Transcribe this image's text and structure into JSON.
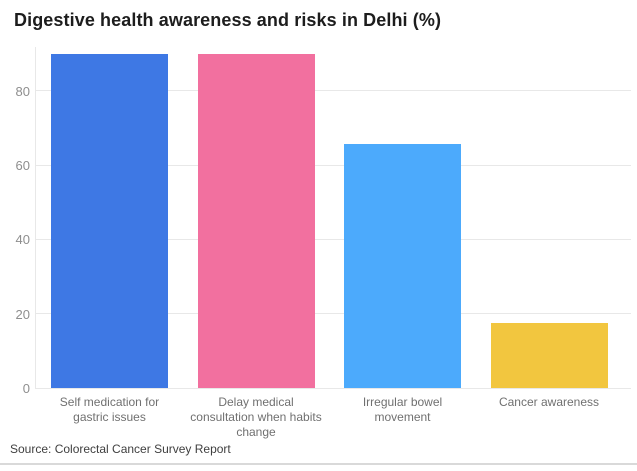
{
  "chart_data": {
    "type": "bar",
    "title": "Digestive health awareness and risks in Delhi (%)",
    "categories": [
      "Self medication for gastric issues",
      "Delay medical consultation when habits change",
      "Irregular bowel movement",
      "Cancer awareness"
    ],
    "values": [
      90,
      89.8,
      65.8,
      17.5
    ],
    "bar_colors": [
      "#3e78e4",
      "#f2709f",
      "#4caafc",
      "#f2c63f"
    ],
    "yticks": [
      0,
      20,
      40,
      60,
      80
    ],
    "ylim": [
      0,
      91.8
    ],
    "xlabel": "",
    "ylabel": "",
    "grid": true,
    "legend": "none",
    "source": "Source: Colorectal Cancer Survey Report"
  }
}
